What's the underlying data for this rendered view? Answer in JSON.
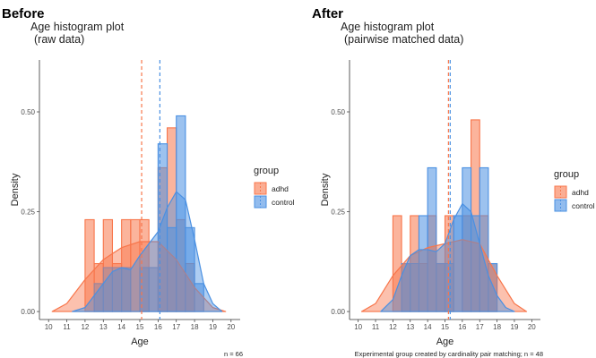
{
  "chart_data": [
    {
      "type": "histogram",
      "panel_title": "Before",
      "title": "Age histogram plot",
      "subtitle": "(raw data)",
      "xlabel": "Age",
      "ylabel": "Density",
      "xlim": [
        9.5,
        20.5
      ],
      "ylim": [
        -0.02,
        0.63
      ],
      "x_ticks": [
        10,
        11,
        12,
        13,
        14,
        15,
        16,
        17,
        18,
        19,
        20
      ],
      "x_tick_labels": [
        "10",
        "11",
        "12",
        "13",
        "14",
        "15",
        "16",
        "17",
        "18",
        "19",
        "20"
      ],
      "y_ticks": [
        0,
        0.25,
        0.5
      ],
      "y_tick_labels": [
        "0.00",
        "0.25",
        "0.50"
      ],
      "legend": {
        "title": "group",
        "entries": [
          "adhd",
          "control"
        ],
        "position": "right"
      },
      "caption": "n = 66",
      "series": [
        {
          "name": "adhd",
          "color": "#F8764B",
          "bars": [
            {
              "x0": 12.0,
              "x1": 12.5,
              "density": 0.23
            },
            {
              "x0": 12.5,
              "x1": 13.0,
              "density": 0.12
            },
            {
              "x0": 13.0,
              "x1": 13.5,
              "density": 0.23
            },
            {
              "x0": 13.5,
              "x1": 14.0,
              "density": 0.12
            },
            {
              "x0": 14.0,
              "x1": 14.5,
              "density": 0.23
            },
            {
              "x0": 14.5,
              "x1": 15.0,
              "density": 0.23
            },
            {
              "x0": 15.0,
              "x1": 15.5,
              "density": 0.23
            },
            {
              "x0": 16.0,
              "x1": 16.5,
              "density": 0.36
            },
            {
              "x0": 16.5,
              "x1": 17.0,
              "density": 0.46
            },
            {
              "x0": 17.0,
              "x1": 17.5,
              "density": 0.23
            },
            {
              "x0": 17.5,
              "x1": 18.0,
              "density": 0.12
            }
          ],
          "density_curve": [
            [
              10.2,
              0.0
            ],
            [
              11.0,
              0.02
            ],
            [
              12.0,
              0.08
            ],
            [
              13.0,
              0.13
            ],
            [
              14.0,
              0.16
            ],
            [
              15.0,
              0.175
            ],
            [
              16.0,
              0.175
            ],
            [
              17.0,
              0.13
            ],
            [
              18.0,
              0.06
            ],
            [
              19.0,
              0.01
            ],
            [
              19.7,
              0.0
            ]
          ],
          "mean": 15.1
        },
        {
          "name": "control",
          "color": "#4A90E2",
          "bars": [
            {
              "x0": 12.5,
              "x1": 13.0,
              "density": 0.07
            },
            {
              "x0": 13.0,
              "x1": 13.5,
              "density": 0.11
            },
            {
              "x0": 13.5,
              "x1": 14.0,
              "density": 0.11
            },
            {
              "x0": 14.0,
              "x1": 14.5,
              "density": 0.11
            },
            {
              "x0": 15.0,
              "x1": 15.5,
              "density": 0.11
            },
            {
              "x0": 15.5,
              "x1": 16.0,
              "density": 0.11
            },
            {
              "x0": 16.0,
              "x1": 16.5,
              "density": 0.42
            },
            {
              "x0": 16.5,
              "x1": 17.0,
              "density": 0.21
            },
            {
              "x0": 17.0,
              "x1": 17.5,
              "density": 0.49
            },
            {
              "x0": 17.5,
              "x1": 18.0,
              "density": 0.21
            },
            {
              "x0": 18.0,
              "x1": 18.5,
              "density": 0.07
            }
          ],
          "density_curve": [
            [
              11.3,
              0.0
            ],
            [
              12.0,
              0.01
            ],
            [
              13.0,
              0.07
            ],
            [
              13.5,
              0.1
            ],
            [
              14.0,
              0.11
            ],
            [
              14.5,
              0.105
            ],
            [
              15.0,
              0.14
            ],
            [
              15.5,
              0.17
            ],
            [
              16.0,
              0.2
            ],
            [
              16.5,
              0.26
            ],
            [
              17.0,
              0.3
            ],
            [
              17.5,
              0.28
            ],
            [
              18.0,
              0.18
            ],
            [
              18.5,
              0.07
            ],
            [
              19.0,
              0.02
            ],
            [
              19.5,
              0.0
            ]
          ],
          "mean": 16.1
        }
      ]
    },
    {
      "type": "histogram",
      "panel_title": "After",
      "title": "Age histogram plot",
      "subtitle": "(pairwise matched data)",
      "xlabel": "Age",
      "ylabel": "Density",
      "xlim": [
        9.5,
        20.5
      ],
      "ylim": [
        -0.02,
        0.63
      ],
      "x_ticks": [
        10,
        11,
        12,
        13,
        14,
        15,
        16,
        17,
        18,
        19,
        20
      ],
      "x_tick_labels": [
        "10",
        "11",
        "12",
        "13",
        "14",
        "15",
        "16",
        "17",
        "18",
        "19",
        "20"
      ],
      "y_ticks": [
        0,
        0.25,
        0.5
      ],
      "y_tick_labels": [
        "0.00",
        "0.25",
        "0.50"
      ],
      "legend": {
        "title": "group",
        "entries": [
          "adhd",
          "control"
        ],
        "position": "right"
      },
      "caption": "Experimental group created by cardinality pair matching; n = 48",
      "series": [
        {
          "name": "adhd",
          "color": "#F8764B",
          "bars": [
            {
              "x0": 12.0,
              "x1": 12.5,
              "density": 0.24
            },
            {
              "x0": 12.5,
              "x1": 13.0,
              "density": 0.12
            },
            {
              "x0": 13.0,
              "x1": 13.5,
              "density": 0.24
            },
            {
              "x0": 13.5,
              "x1": 14.0,
              "density": 0.12
            },
            {
              "x0": 14.0,
              "x1": 14.5,
              "density": 0.24
            },
            {
              "x0": 14.5,
              "x1": 15.0,
              "density": 0.12
            },
            {
              "x0": 15.0,
              "x1": 15.5,
              "density": 0.24
            },
            {
              "x0": 16.0,
              "x1": 16.5,
              "density": 0.24
            },
            {
              "x0": 16.5,
              "x1": 17.0,
              "density": 0.48
            },
            {
              "x0": 17.0,
              "x1": 17.5,
              "density": 0.24
            },
            {
              "x0": 17.5,
              "x1": 18.0,
              "density": 0.12
            }
          ],
          "density_curve": [
            [
              10.2,
              0.0
            ],
            [
              11.0,
              0.02
            ],
            [
              12.0,
              0.09
            ],
            [
              13.0,
              0.14
            ],
            [
              14.0,
              0.16
            ],
            [
              15.0,
              0.17
            ],
            [
              16.0,
              0.18
            ],
            [
              17.0,
              0.17
            ],
            [
              18.0,
              0.09
            ],
            [
              19.0,
              0.02
            ],
            [
              19.7,
              0.0
            ]
          ],
          "mean": 15.2
        },
        {
          "name": "control",
          "color": "#4A90E2",
          "bars": [
            {
              "x0": 12.5,
              "x1": 13.0,
              "density": 0.12
            },
            {
              "x0": 13.0,
              "x1": 13.5,
              "density": 0.12
            },
            {
              "x0": 13.5,
              "x1": 14.0,
              "density": 0.24
            },
            {
              "x0": 14.0,
              "x1": 14.5,
              "density": 0.36
            },
            {
              "x0": 14.5,
              "x1": 15.0,
              "density": 0.12
            },
            {
              "x0": 15.0,
              "x1": 15.5,
              "density": 0.12
            },
            {
              "x0": 15.5,
              "x1": 16.0,
              "density": 0.24
            },
            {
              "x0": 16.0,
              "x1": 16.5,
              "density": 0.36
            },
            {
              "x0": 16.5,
              "x1": 17.0,
              "density": 0.24
            },
            {
              "x0": 17.0,
              "x1": 17.5,
              "density": 0.36
            },
            {
              "x0": 17.5,
              "x1": 18.0,
              "density": 0.12
            }
          ],
          "density_curve": [
            [
              11.3,
              0.0
            ],
            [
              12.0,
              0.03
            ],
            [
              12.5,
              0.09
            ],
            [
              13.0,
              0.14
            ],
            [
              13.5,
              0.155
            ],
            [
              14.0,
              0.155
            ],
            [
              14.5,
              0.15
            ],
            [
              15.0,
              0.17
            ],
            [
              15.5,
              0.23
            ],
            [
              16.0,
              0.27
            ],
            [
              16.5,
              0.25
            ],
            [
              17.0,
              0.17
            ],
            [
              17.5,
              0.09
            ],
            [
              18.0,
              0.04
            ],
            [
              18.5,
              0.01
            ],
            [
              19.0,
              0.0
            ]
          ],
          "mean": 15.3
        }
      ]
    }
  ]
}
